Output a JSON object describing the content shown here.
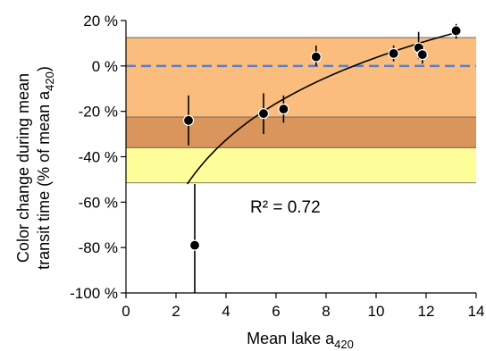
{
  "chart_data": {
    "type": "scatter",
    "title": "",
    "xlabel": {
      "main": "Mean lake a",
      "sub": "420"
    },
    "ylabel": {
      "line1": "Color change during mean",
      "line2_main": "transit time (% of mean a",
      "line2_sub": "420",
      "line2_end": ")"
    },
    "xlim": [
      0,
      14
    ],
    "ylim": [
      -100,
      20
    ],
    "x_ticks": [
      "0",
      "2",
      "4",
      "6",
      "8",
      "10",
      "12",
      "14"
    ],
    "y_ticks": [
      "20 %",
      "0 %",
      "-20 %",
      "-40 %",
      "-60 %",
      "-80 %",
      "-100 %"
    ],
    "points": [
      {
        "x": 2.5,
        "y": -24,
        "err_low": -35,
        "err_high": -13
      },
      {
        "x": 2.75,
        "y": -79,
        "err_low": -100,
        "err_high": -52
      },
      {
        "x": 5.5,
        "y": -21,
        "err_low": -30,
        "err_high": -12
      },
      {
        "x": 6.3,
        "y": -19,
        "err_low": -25,
        "err_high": -13
      },
      {
        "x": 7.6,
        "y": 4,
        "err_low": 0,
        "err_high": 9
      },
      {
        "x": 10.7,
        "y": 5.5,
        "err_low": 2,
        "err_high": 9
      },
      {
        "x": 11.7,
        "y": 8,
        "err_low": 3,
        "err_high": 15
      },
      {
        "x": 11.85,
        "y": 5,
        "err_low": 1,
        "err_high": 9
      },
      {
        "x": 13.2,
        "y": 15.5,
        "err_low": 12,
        "err_high": 18.5
      }
    ],
    "bands": [
      {
        "y0": -22.5,
        "y1": 12.5,
        "color": "#fbbd7e"
      },
      {
        "y0": -36,
        "y1": -22.5,
        "color": "#d9955b"
      },
      {
        "y0": -51.5,
        "y1": -36,
        "color": "#fdfd9a"
      }
    ],
    "reference_line": {
      "y": 0,
      "color": "#5b7fc4",
      "style": "dashed"
    },
    "fit_curve": {
      "x_start": 2.45,
      "x_end": 13.3
    },
    "annotation": "R² = 0.72",
    "grid": false
  }
}
